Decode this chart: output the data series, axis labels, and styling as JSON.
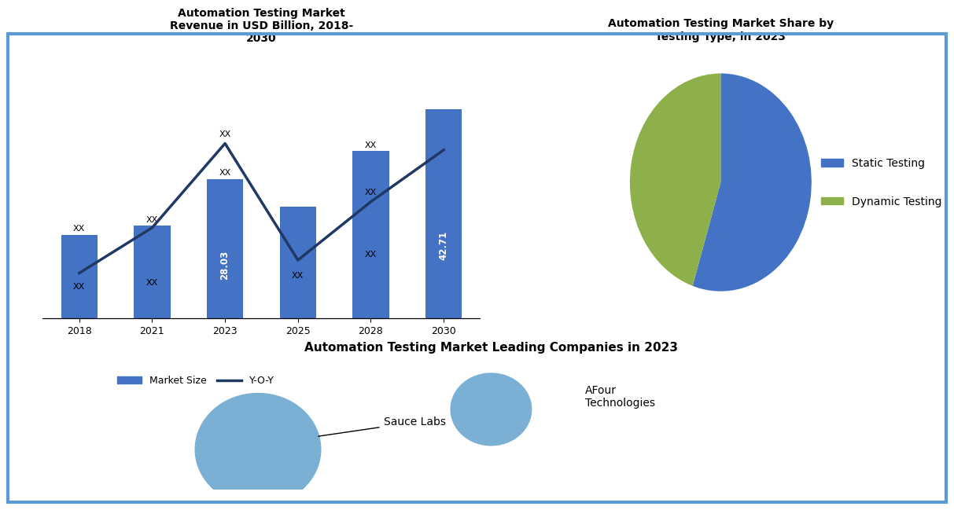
{
  "bar_title": "Automation Testing Market\nRevenue in USD Billion, 2018-\n2030",
  "pie_title": "Automation Testing Market Share by\nTesting Type, in 2023",
  "bottom_title": "Automation Testing Market Leading Companies in 2023",
  "bar_years": [
    "2018",
    "2021",
    "2023",
    "2025",
    "2028",
    "2030"
  ],
  "bar_heights": [
    1.8,
    2.0,
    3.0,
    2.4,
    3.6,
    4.5
  ],
  "bar_labels_inside": [
    "XX",
    "XX",
    "28.03",
    "XX",
    "XX",
    "42.71"
  ],
  "bar_labels_above": [
    "XX",
    "XX",
    "XX",
    "",
    "XX",
    ""
  ],
  "line_values": [
    0.5,
    1.2,
    2.5,
    0.7,
    1.6,
    2.4
  ],
  "line_labels_above": [
    "",
    "",
    "XX",
    "",
    "XX",
    ""
  ],
  "bar_color": "#4472C4",
  "line_color": "#1F3864",
  "pie_sizes": [
    55,
    45
  ],
  "pie_colors": [
    "#4472C4",
    "#8DB04A"
  ],
  "pie_labels": [
    "Static Testing",
    "Dynamic Testing"
  ],
  "bg_color": "#FFFFFF",
  "border_color": "#5B9BD5",
  "legend_market_size_label": "Market Size",
  "legend_yoy_label": "Y-O-Y",
  "sauce_color": "#7BAFD4",
  "afour_color": "#7BAFD4"
}
